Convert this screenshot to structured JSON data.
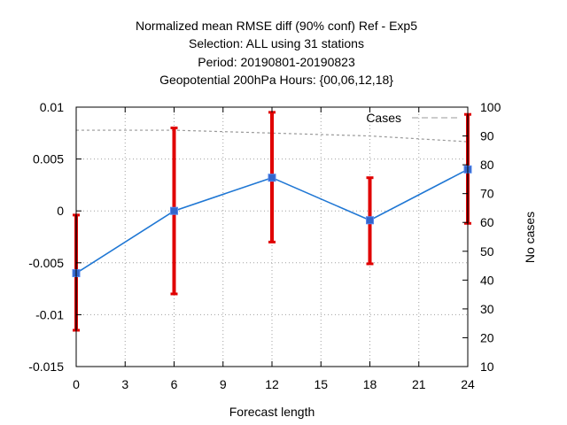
{
  "chart_data": {
    "type": "line",
    "title_lines": [
      "Normalized mean RMSE diff (90% conf) Ref - Exp5",
      "Selection: ALL using    31 stations",
      "Period: 20190801-20190823",
      "Geopotential 200hPa   Hours: {00,06,12,18}"
    ],
    "xlabel": "Forecast length",
    "y2label": "No cases",
    "xlim": [
      0,
      24
    ],
    "ylim": [
      -0.015,
      0.01
    ],
    "y2lim": [
      10,
      100
    ],
    "x_ticks": [
      0,
      3,
      6,
      9,
      12,
      15,
      18,
      21,
      24
    ],
    "y_ticks": [
      -0.015,
      -0.01,
      -0.005,
      0,
      0.005,
      0.01
    ],
    "y_tick_labels": [
      "-0.015",
      "-0.01",
      "-0.005",
      "0",
      "0.005",
      "0.01"
    ],
    "y2_ticks": [
      10,
      20,
      30,
      40,
      50,
      60,
      70,
      80,
      90,
      100
    ],
    "grid": true,
    "legend_entry": "Cases",
    "legend_position": "top-right",
    "diff_series": {
      "x": [
        0,
        6,
        12,
        18,
        24
      ],
      "y": [
        -0.006,
        0.0,
        0.0032,
        -0.0009,
        0.004
      ],
      "err_low": [
        -0.0115,
        -0.008,
        -0.003,
        -0.0051,
        -0.0012
      ],
      "err_high": [
        -0.0004,
        0.008,
        0.0095,
        0.0032,
        0.0093
      ],
      "line_color": "#1f77d4",
      "marker_color": "#3366cc",
      "error_color": "#e00000",
      "error_dark_color": "#990000"
    },
    "cases_series": {
      "x": [
        0,
        6,
        12,
        18,
        24
      ],
      "y": [
        92,
        92,
        91,
        90,
        88
      ],
      "color": "#999999"
    }
  }
}
